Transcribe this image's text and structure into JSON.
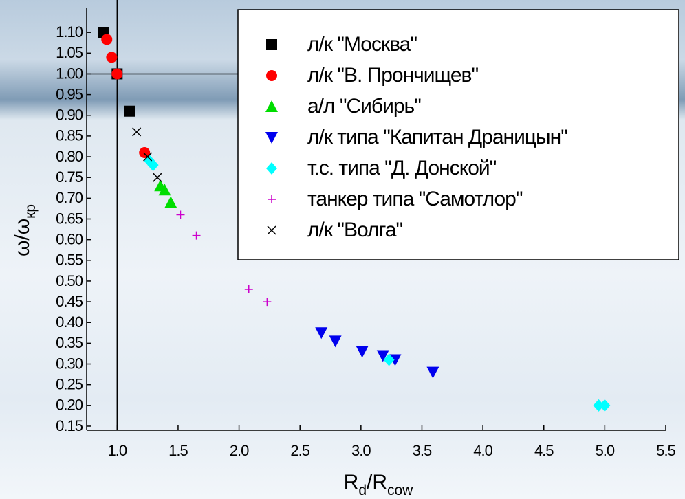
{
  "chart_data": {
    "type": "scatter",
    "xlabel": [
      {
        "text": "R"
      },
      {
        "text": "d",
        "sub": true
      },
      {
        "text": "/R"
      },
      {
        "text": "cow",
        "sub": true
      }
    ],
    "ylabel": [
      {
        "text": "ω/ω"
      },
      {
        "text": "кр",
        "sub": true
      }
    ],
    "xlim": [
      0.75,
      5.5
    ],
    "ylim": [
      0.14,
      1.16
    ],
    "xticks": [
      {
        "value": 1,
        "label": "1.0"
      },
      {
        "value": 1.5,
        "label": "1.5"
      },
      {
        "value": 2,
        "label": "2.0"
      },
      {
        "value": 2.5,
        "label": "2.5"
      },
      {
        "value": 3,
        "label": "3.0"
      },
      {
        "value": 3.5,
        "label": "3.5"
      },
      {
        "value": 4,
        "label": "4.0"
      },
      {
        "value": 4.5,
        "label": "4.5"
      },
      {
        "value": 5,
        "label": "5.0"
      },
      {
        "value": 5.5,
        "label": "5.5"
      }
    ],
    "yticks": [
      {
        "value": 0.15,
        "label": "0.15"
      },
      {
        "value": 0.2,
        "label": "0.20"
      },
      {
        "value": 0.25,
        "label": "0.25"
      },
      {
        "value": 0.3,
        "label": "0.30"
      },
      {
        "value": 0.35,
        "label": "0.35"
      },
      {
        "value": 0.4,
        "label": "0.40"
      },
      {
        "value": 0.45,
        "label": "0.45"
      },
      {
        "value": 0.5,
        "label": "0.50"
      },
      {
        "value": 0.55,
        "label": "0.55"
      },
      {
        "value": 0.6,
        "label": "0.60"
      },
      {
        "value": 0.65,
        "label": "0.65"
      },
      {
        "value": 0.7,
        "label": "0.70"
      },
      {
        "value": 0.75,
        "label": "0.75"
      },
      {
        "value": 0.8,
        "label": "0.80"
      },
      {
        "value": 0.85,
        "label": "0.85"
      },
      {
        "value": 0.9,
        "label": "0.90"
      },
      {
        "value": 0.95,
        "label": "0.95"
      },
      {
        "value": 1,
        "label": "1.00"
      },
      {
        "value": 1.05,
        "label": "1.05"
      },
      {
        "value": 1.1,
        "label": "1.10"
      }
    ],
    "vlines": [
      1
    ],
    "hlines": [
      1
    ],
    "legend": "upper right",
    "series": [
      {
        "name": "л/к \"Москва\"",
        "marker": "square",
        "color": "#000000",
        "x": [
          0.89,
          1.0,
          1.1
        ],
        "values": [
          1.1,
          1.0,
          0.91
        ]
      },
      {
        "name": "л/к \"В. Прончищев\"",
        "marker": "circle",
        "color": "#ff0000",
        "x": [
          0.915,
          0.955,
          1.0,
          1.225
        ],
        "values": [
          1.083,
          1.04,
          1.0,
          0.81
        ]
      },
      {
        "name": "а/л \"Сибирь\"",
        "marker": "triangle-up",
        "color": "#00dd00",
        "x": [
          1.355,
          1.39,
          1.44
        ],
        "values": [
          0.73,
          0.72,
          0.69
        ]
      },
      {
        "name": "л/к типа \"Капитан Драницын\"",
        "marker": "triangle-down",
        "color": "#0000ee",
        "x": [
          2.675,
          2.79,
          3.01,
          3.18,
          3.28,
          3.59
        ],
        "values": [
          0.375,
          0.355,
          0.33,
          0.32,
          0.31,
          0.28
        ]
      },
      {
        "name": "т.с. типа \"Д. Донской\"",
        "marker": "diamond",
        "color": "#00ffff",
        "x": [
          1.265,
          1.295,
          3.23,
          4.95,
          5.0
        ],
        "values": [
          0.79,
          0.78,
          0.31,
          0.2,
          0.2
        ]
      },
      {
        "name": "танкер типа \"Самотлор\"",
        "marker": "plus",
        "color": "#cc00cc",
        "x": [
          1.52,
          1.65,
          2.08,
          2.23
        ],
        "values": [
          0.66,
          0.61,
          0.48,
          0.45
        ]
      },
      {
        "name": "л/к \"Волга\"",
        "marker": "cross",
        "color": "#000000",
        "x": [
          1.16,
          1.25,
          1.33
        ],
        "values": [
          0.86,
          0.8,
          0.75
        ]
      }
    ]
  }
}
